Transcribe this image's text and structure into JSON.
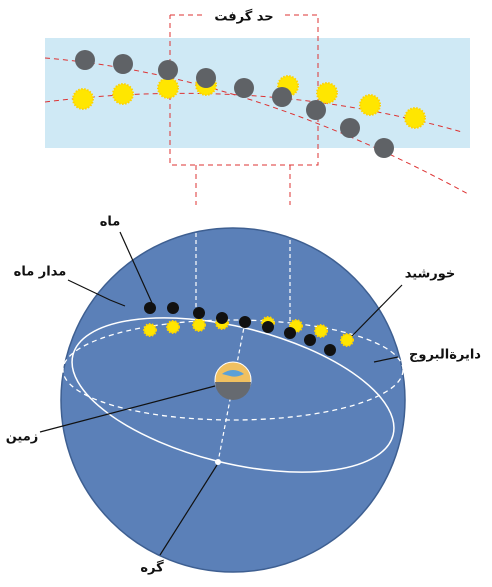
{
  "labels": {
    "eclipse_limit": "حد گرفت",
    "moon": "ماه",
    "moon_orbit": "مدار ماه",
    "sun": "خورشید",
    "ecliptic": "دایرةالبروج",
    "earth": "زمین",
    "node": "گره"
  }
}
